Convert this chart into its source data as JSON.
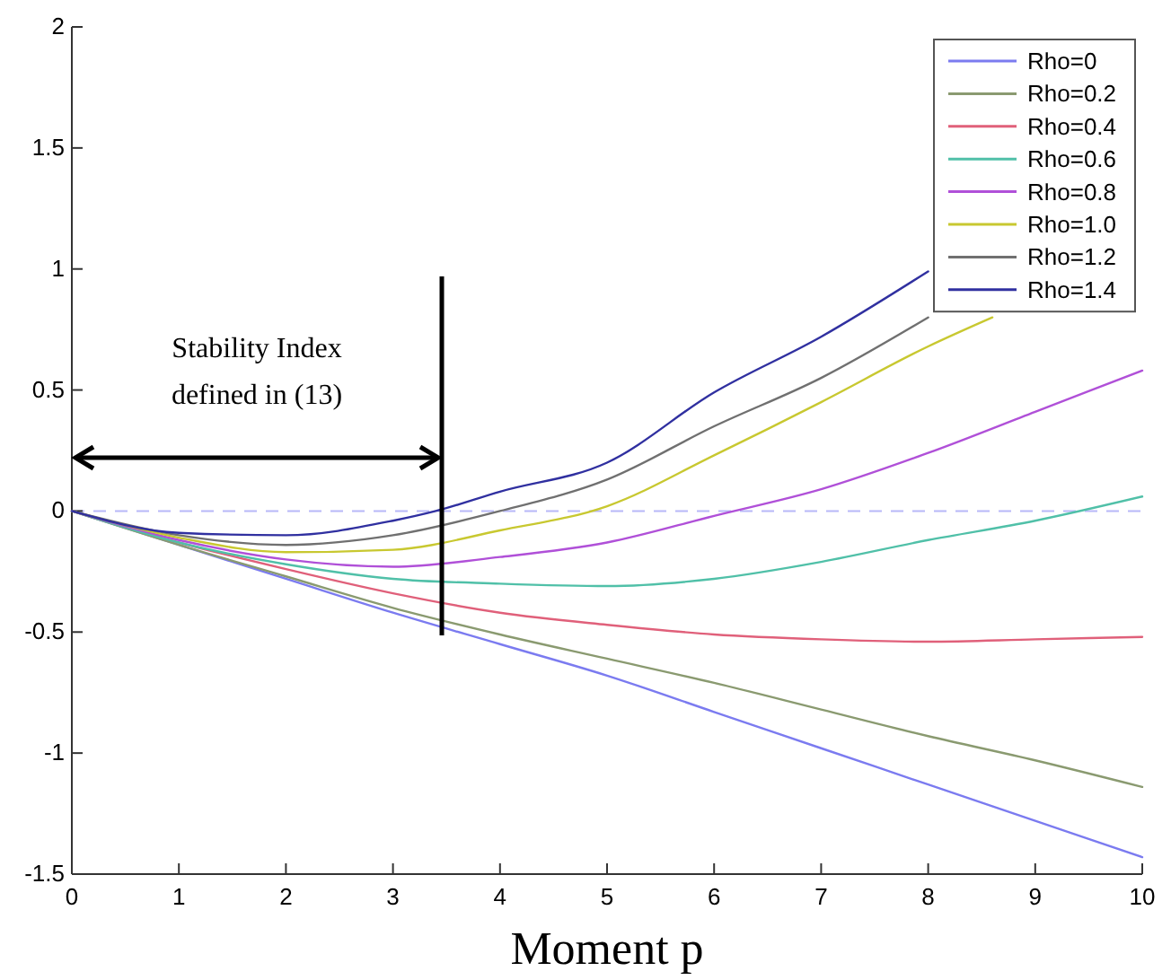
{
  "chart_data": {
    "type": "line",
    "xlabel": "Moment p",
    "xlim": [
      0,
      10
    ],
    "ylim": [
      -1.5,
      2
    ],
    "xticks": [
      0,
      1,
      2,
      3,
      4,
      5,
      6,
      7,
      8,
      9,
      10
    ],
    "yticks": [
      -1.5,
      -1,
      -0.5,
      0,
      0.5,
      1,
      1.5,
      2
    ],
    "grid": false,
    "legend": "top right",
    "marker": "none",
    "line_style": "solid",
    "series": [
      {
        "name": "Rho=0",
        "color": "#7b7bf0",
        "x": [
          0,
          1,
          2,
          3,
          4,
          5,
          6,
          7,
          8,
          9,
          10
        ],
        "values": [
          0,
          -0.14,
          -0.28,
          -0.42,
          -0.55,
          -0.68,
          -0.83,
          -0.98,
          -1.13,
          -1.28,
          -1.43
        ]
      },
      {
        "name": "Rho=0.2",
        "color": "#8a9a70",
        "x": [
          0,
          1,
          2,
          3,
          4,
          5,
          6,
          7,
          8,
          9,
          10
        ],
        "values": [
          0,
          -0.14,
          -0.27,
          -0.4,
          -0.51,
          -0.61,
          -0.71,
          -0.82,
          -0.93,
          -1.03,
          -1.14
        ]
      },
      {
        "name": "Rho=0.4",
        "color": "#e0607a",
        "x": [
          0,
          1,
          2,
          3,
          4,
          5,
          6,
          7,
          8,
          9,
          10
        ],
        "values": [
          0,
          -0.13,
          -0.24,
          -0.34,
          -0.42,
          -0.47,
          -0.51,
          -0.53,
          -0.54,
          -0.53,
          -0.52
        ]
      },
      {
        "name": "Rho=0.6",
        "color": "#50c0a8",
        "x": [
          0,
          1,
          2,
          3,
          4,
          5,
          6,
          7,
          8,
          9,
          10
        ],
        "values": [
          0,
          -0.13,
          -0.22,
          -0.28,
          -0.3,
          -0.31,
          -0.28,
          -0.21,
          -0.12,
          -0.04,
          0.06
        ]
      },
      {
        "name": "Rho=0.8",
        "color": "#b050d8",
        "x": [
          0,
          1,
          2,
          3,
          4,
          5,
          6,
          7,
          8,
          9,
          10
        ],
        "values": [
          0,
          -0.12,
          -0.2,
          -0.23,
          -0.19,
          -0.13,
          -0.02,
          0.09,
          0.24,
          0.41,
          0.58
        ]
      },
      {
        "name": "Rho=1.0",
        "color": "#c8c830",
        "x": [
          0,
          1,
          2,
          3,
          4,
          5,
          6,
          7,
          8,
          8.6
        ],
        "values": [
          0,
          -0.11,
          -0.17,
          -0.16,
          -0.08,
          0.02,
          0.23,
          0.45,
          0.68,
          0.8
        ]
      },
      {
        "name": "Rho=1.2",
        "color": "#707070",
        "x": [
          0,
          1,
          2,
          3,
          4,
          5,
          6,
          7,
          8
        ],
        "values": [
          0,
          -0.1,
          -0.14,
          -0.1,
          0,
          0.13,
          0.35,
          0.55,
          0.8
        ]
      },
      {
        "name": "Rho=1.4",
        "color": "#3030a0",
        "x": [
          0,
          1,
          2,
          3,
          3.4,
          4,
          5,
          6,
          7,
          8
        ],
        "values": [
          0,
          -0.09,
          -0.1,
          -0.04,
          0,
          0.08,
          0.2,
          0.49,
          0.72,
          0.99
        ]
      }
    ],
    "ref_lines": [
      {
        "axis": "y",
        "value": 0,
        "color": "#b8b8f8",
        "line_style": "dashed"
      }
    ],
    "annotations": [
      "Stability Index\ndefined in (13)"
    ]
  }
}
